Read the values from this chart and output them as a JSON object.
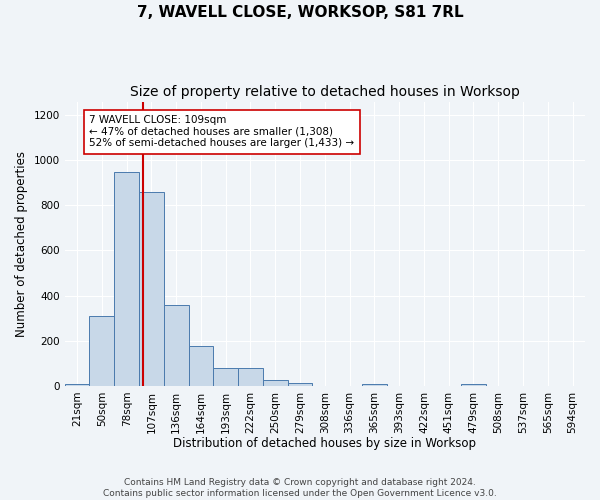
{
  "title": "7, WAVELL CLOSE, WORKSOP, S81 7RL",
  "subtitle": "Size of property relative to detached houses in Worksop",
  "xlabel": "Distribution of detached houses by size in Worksop",
  "ylabel": "Number of detached properties",
  "footer_line1": "Contains HM Land Registry data © Crown copyright and database right 2024.",
  "footer_line2": "Contains public sector information licensed under the Open Government Licence v3.0.",
  "bin_labels": [
    "21sqm",
    "50sqm",
    "78sqm",
    "107sqm",
    "136sqm",
    "164sqm",
    "193sqm",
    "222sqm",
    "250sqm",
    "279sqm",
    "308sqm",
    "336sqm",
    "365sqm",
    "393sqm",
    "422sqm",
    "451sqm",
    "479sqm",
    "508sqm",
    "537sqm",
    "565sqm",
    "594sqm"
  ],
  "bar_heights": [
    10,
    310,
    950,
    860,
    360,
    175,
    80,
    80,
    25,
    12,
    0,
    0,
    10,
    0,
    0,
    0,
    10,
    0,
    0,
    0,
    0
  ],
  "bar_color": "#c8d8e8",
  "bar_edge_color": "#4a7aad",
  "ylim": [
    0,
    1260
  ],
  "yticks": [
    0,
    200,
    400,
    600,
    800,
    1000,
    1200
  ],
  "property_line_x": 2.65,
  "property_line_color": "#cc0000",
  "annotation_text": "7 WAVELL CLOSE: 109sqm\n← 47% of detached houses are smaller (1,308)\n52% of semi-detached houses are larger (1,433) →",
  "annotation_box_color": "#ffffff",
  "annotation_box_edge": "#cc0000",
  "background_color": "#f0f4f8",
  "grid_color": "#ffffff",
  "title_fontsize": 11,
  "subtitle_fontsize": 10,
  "axis_label_fontsize": 8.5,
  "tick_fontsize": 7.5,
  "annotation_fontsize": 7.5,
  "footer_fontsize": 6.5
}
